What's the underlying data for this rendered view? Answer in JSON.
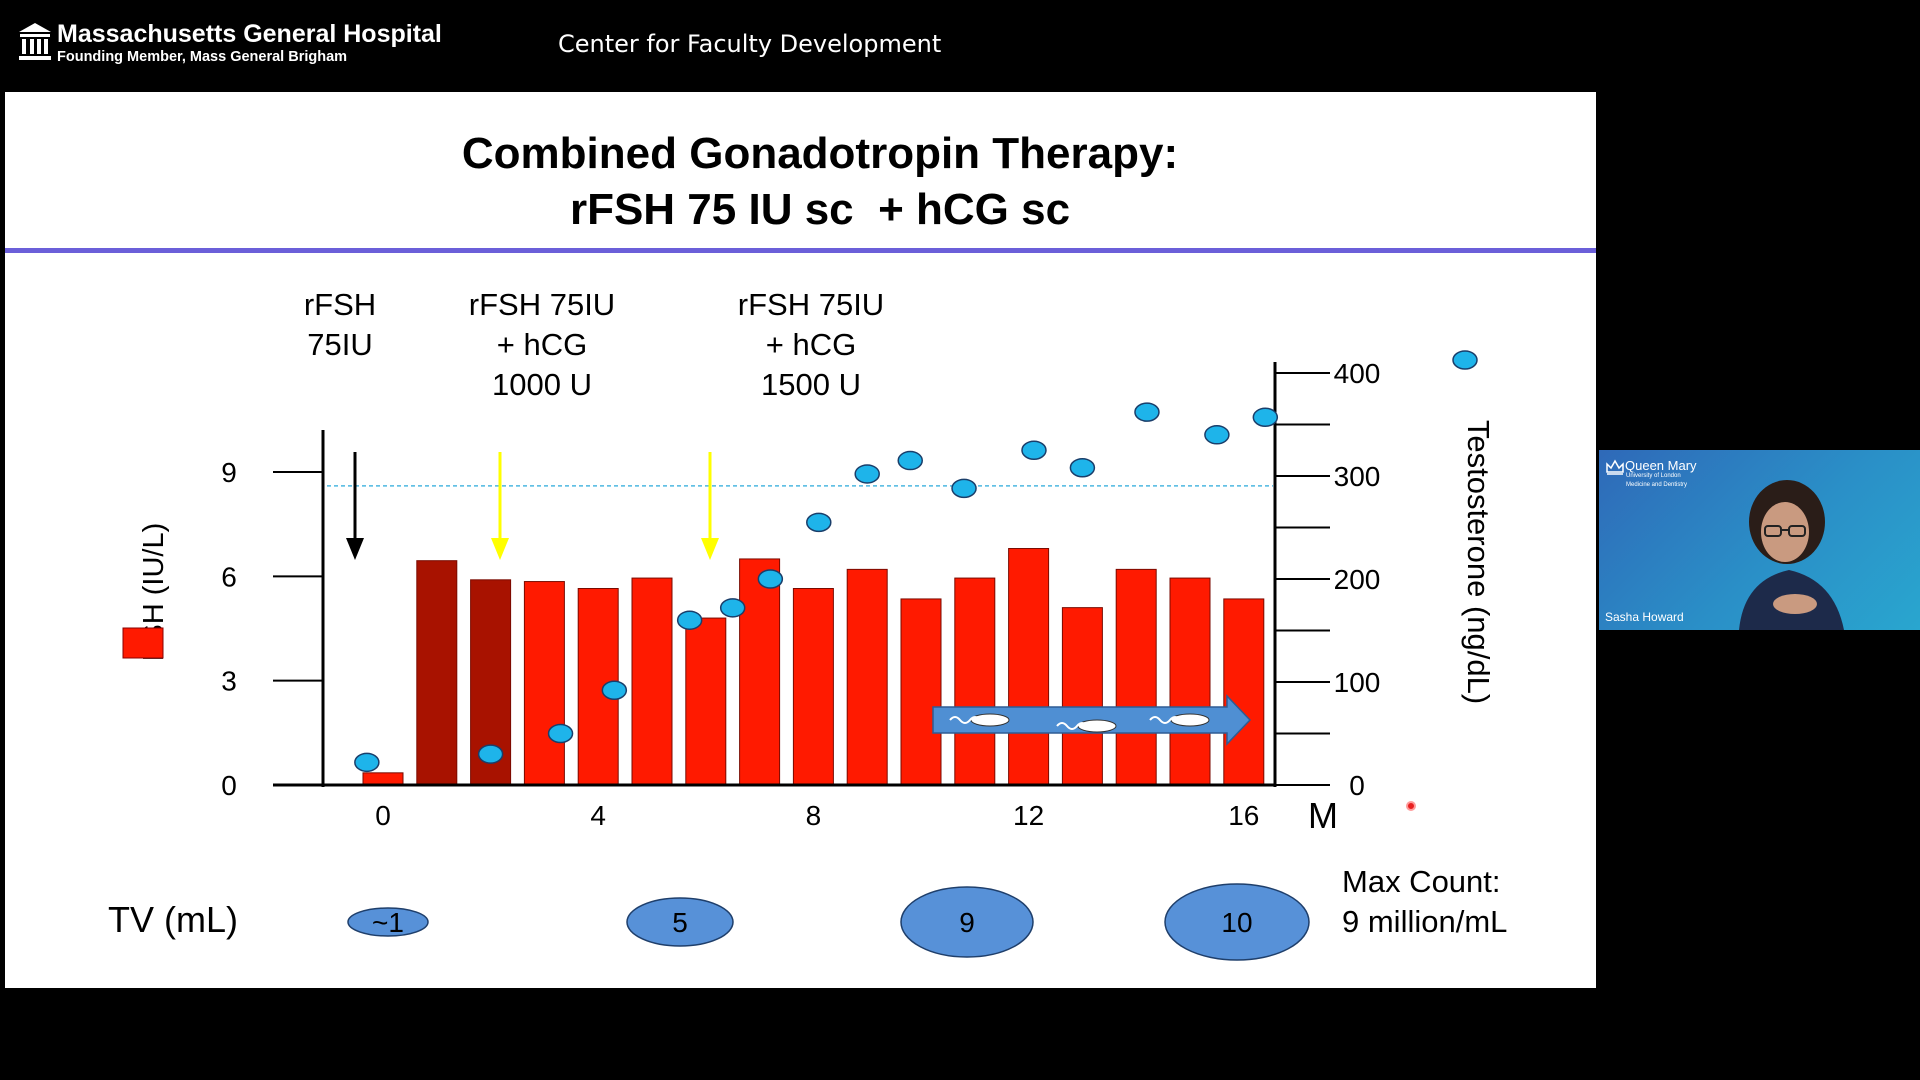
{
  "header": {
    "hospital_name": "Massachusetts General Hospital",
    "hospital_subtitle": "Founding Member, Mass General Brigham",
    "center_title": "Center for Faculty Development",
    "logo_icon": "hospital-building-icon"
  },
  "slide": {
    "title_line1": "Combined Gonadotropin Therapy:",
    "title_line2": "rFSH 75 IU sc  + hCG sc",
    "rule_color": "#6b5fd9",
    "dose_annotations": [
      {
        "lines": [
          "rFSH",
          "75IU"
        ],
        "arrow_color": "#000000",
        "x_month": -0.6
      },
      {
        "lines": [
          "rFSH 75IU",
          "+ hCG",
          "1000 U"
        ],
        "arrow_color": "#ffff00",
        "x_month": 3.2
      },
      {
        "lines": [
          "rFSH 75IU",
          "+ hCG",
          "1500 U"
        ],
        "arrow_color": "#ffff00",
        "x_month": 7.5
      }
    ],
    "tv_label": "TV (mL)",
    "tv_values": [
      {
        "label": "~1",
        "month": 0.2
      },
      {
        "label": "5",
        "month": 6.3
      },
      {
        "label": "9",
        "month": 12.1
      },
      {
        "label": "10",
        "month": 18.0
      }
    ],
    "max_count": [
      "Max Count:",
      "9 million/mL"
    ]
  },
  "chart_data": {
    "type": "bar",
    "x_unit": "M",
    "x_ticks": [
      0,
      4,
      8,
      12,
      16
    ],
    "left_axis": {
      "label": "FSH (IU/L)",
      "ticks": [
        0,
        3,
        6,
        9
      ],
      "range": [
        0,
        10.5
      ]
    },
    "right_axis": {
      "label": "Testosterone (ng/dL)",
      "ticks": [
        0,
        100,
        200,
        300,
        400
      ],
      "range": [
        0,
        400
      ]
    },
    "reference_line_fsh": 8.6,
    "series": [
      {
        "name": "FSH (IU/L)",
        "type": "bar",
        "color": "#ff1a00",
        "months": [
          0,
          1,
          2,
          3,
          4,
          5,
          6,
          7,
          8,
          9,
          10,
          11,
          12,
          13,
          14,
          15,
          16
        ],
        "values": [
          0.35,
          6.45,
          5.9,
          5.85,
          5.65,
          5.95,
          4.8,
          6.5,
          5.65,
          6.2,
          5.35,
          5.95,
          6.8,
          5.1,
          6.2,
          5.95,
          5.35
        ],
        "dark_months": [
          1,
          2
        ],
        "dark_color": "#a81200"
      },
      {
        "name": "Testosterone (ng/dL)",
        "type": "scatter",
        "color": "#1eb4ea",
        "months": [
          -0.3,
          2.0,
          3.3,
          4.3,
          5.7,
          6.5,
          7.2,
          8.1,
          9.0,
          9.8,
          10.8,
          12.1,
          13.0,
          14.2,
          15.5,
          16.4
        ],
        "values": [
          22,
          30,
          50,
          92,
          160,
          172,
          200,
          255,
          302,
          315,
          288,
          325,
          308,
          362,
          340,
          357
        ]
      }
    ],
    "legend": {
      "position": "left",
      "swatch_color": "#ff1a00"
    },
    "right_legend_marker": "testosterone-dot"
  },
  "participant": {
    "name": "Sasha Howard",
    "org_name": "Queen Mary",
    "org_sub1": "University of London",
    "org_sub2": "Medicine and Dentistry",
    "org_icon": "crown-icon"
  }
}
